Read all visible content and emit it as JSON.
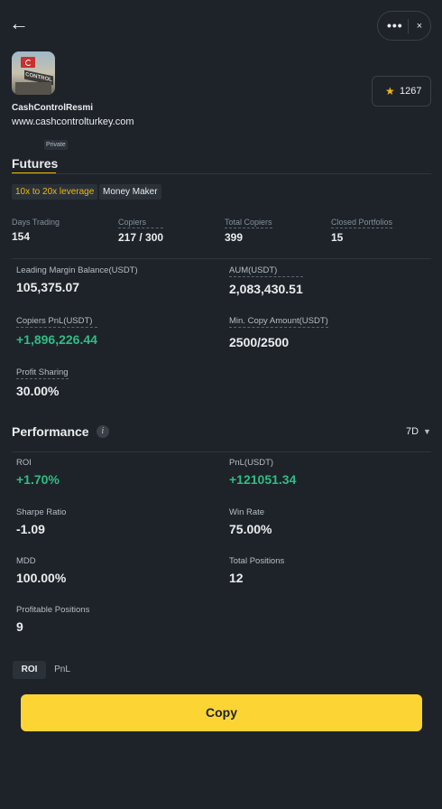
{
  "header": {
    "back_icon": "←",
    "more_icon": "•••",
    "close_icon": "×"
  },
  "profile": {
    "username": "CashControlResmi",
    "website": "www.cashcontrolturkey.com",
    "badge": "Private",
    "avatar_sign_text": "CONTROL",
    "favorites_count": "1267"
  },
  "futures": {
    "title": "Futures",
    "tags": [
      "10x to 20x leverage",
      "Money Maker"
    ],
    "stats": [
      {
        "label": "Days Trading",
        "value": "154"
      },
      {
        "label": "Copiers",
        "value": "217 / 300"
      },
      {
        "label": "Total Copiers",
        "value": "399"
      },
      {
        "label": "Closed Portfolios",
        "value": "15"
      }
    ],
    "details": [
      {
        "label": "Leading Margin Balance(USDT)",
        "value": "105,375.07"
      },
      {
        "label": "AUM(USDT)",
        "value": "2,083,430.51"
      },
      {
        "label": "Copiers PnL(USDT)",
        "value": "+1,896,226.44"
      },
      {
        "label": "Min. Copy Amount(USDT)",
        "value": "2500/2500"
      },
      {
        "label": "Profit Sharing",
        "value": "30.00%"
      }
    ]
  },
  "performance": {
    "title": "Performance",
    "info_icon": "i",
    "period": "7D",
    "metrics": [
      {
        "label": "ROI",
        "value": "+1.70%"
      },
      {
        "label": "PnL(USDT)",
        "value": "+121051.34"
      },
      {
        "label": "Sharpe Ratio",
        "value": "-1.09"
      },
      {
        "label": "Win Rate",
        "value": "75.00%"
      },
      {
        "label": "MDD",
        "value": "100.00%"
      },
      {
        "label": "Total Positions",
        "value": "12"
      },
      {
        "label": "Profitable Positions",
        "value": "9"
      }
    ],
    "toggle": [
      "ROI",
      "PnL"
    ]
  },
  "copy_button": "Copy",
  "colors": {
    "accent": "#fcd535",
    "positive": "#2ebd85",
    "background": "#1e2329"
  }
}
